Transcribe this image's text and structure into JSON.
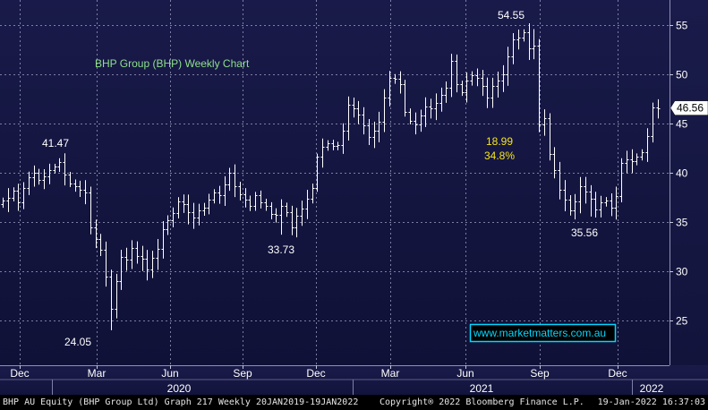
{
  "chart_data": {
    "type": "ohlc",
    "title": "BHP Group (BHP) Weekly Chart",
    "watermark": "www.marketmatters.com.au",
    "last_price_label": "46.56",
    "y_axis": {
      "range": [
        20.5,
        57.5
      ],
      "ticks": [
        25,
        30,
        35,
        40,
        45,
        50,
        55
      ],
      "side": "right",
      "grid": true
    },
    "x_axis": {
      "month_labels": [
        "Dec",
        "Mar",
        "Jun",
        "Sep",
        "Dec",
        "Mar",
        "Jun",
        "Sep",
        "Dec"
      ],
      "year_labels": [
        "2020",
        "2021",
        "2022"
      ]
    },
    "annotations": {
      "high_2019": "41.47",
      "low_2020": "24.05",
      "low_sep_2020": "33.73",
      "high_2021": "54.55",
      "drop_points": "18.99",
      "drop_pct": "34.8%",
      "low_2021": "35.56"
    },
    "close": [
      37.2,
      37.5,
      38.2,
      37.0,
      38.5,
      39.5,
      40.0,
      39.3,
      39.6,
      40.3,
      40.6,
      41.1,
      39.8,
      38.9,
      38.6,
      38.3,
      38.0,
      34.5,
      33.3,
      32.2,
      29.5,
      26.2,
      29.0,
      31.5,
      31.2,
      32.4,
      31.6,
      31.3,
      30.2,
      31.4,
      32.3,
      34.3,
      35.2,
      35.9,
      37.1,
      36.8,
      36.0,
      35.5,
      36.2,
      36.5,
      37.3,
      38.0,
      37.7,
      38.8,
      40.0,
      38.6,
      37.8,
      37.3,
      36.6,
      37.7,
      37.0,
      36.6,
      35.8,
      35.7,
      36.6,
      36.0,
      34.5,
      35.6,
      36.4,
      37.4,
      38.5,
      41.6,
      42.6,
      43.0,
      42.7,
      42.8,
      44.3,
      46.9,
      46.5,
      45.9,
      44.8,
      43.6,
      44.3,
      45.2,
      47.6,
      49.6,
      49.5,
      49.0,
      46.2,
      45.3,
      44.9,
      45.8,
      46.7,
      46.5,
      47.1,
      47.9,
      48.6,
      51.3,
      49.0,
      48.2,
      49.3,
      49.9,
      49.6,
      48.8,
      47.6,
      48.8,
      49.3,
      50.0,
      51.8,
      53.5,
      53.7,
      54.2,
      52.6,
      52.9,
      44.9,
      45.5,
      41.9,
      40.3,
      38.3,
      37.3,
      36.2,
      37.1,
      38.6,
      38.1,
      37.4,
      36.3,
      37.0,
      37.2,
      36.5,
      37.6,
      41.0,
      41.4,
      41.2,
      41.6,
      42.1,
      43.7,
      46.6,
      46.56
    ]
  }
}
